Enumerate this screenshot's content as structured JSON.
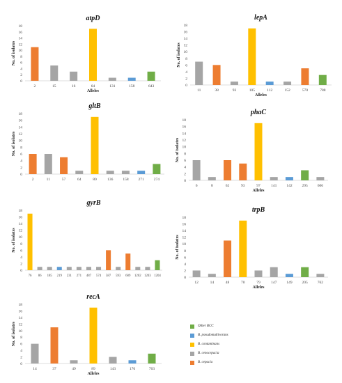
{
  "colors": {
    "b_cepacia": "#ED7D31",
    "b_cenocepacia": "#A5A5A5",
    "b_contaminans": "#FFC000",
    "b_pseudomultivorans": "#5B9BD5",
    "other_bcc": "#70AD47"
  },
  "legend": [
    {
      "label": "Other BCC",
      "color_key": "other_bcc"
    },
    {
      "label": "B. pseudomultivorans",
      "color_key": "b_pseudomultivorans"
    },
    {
      "label": "B. contaminans",
      "color_key": "b_contaminans"
    },
    {
      "label": "B. cenocepacia",
      "color_key": "b_cenocepacia"
    },
    {
      "label": "B. cepacia",
      "color_key": "b_cepacia"
    }
  ],
  "chart_data": [
    {
      "type": "bar",
      "title": "atpD",
      "xlabel": "Alleles",
      "ylabel": "No. of isolates",
      "ylim": [
        0,
        18
      ],
      "yticks": [
        0,
        2,
        4,
        6,
        8,
        10,
        12,
        14,
        16,
        18
      ],
      "grid": false,
      "categories": [
        "2",
        "15",
        "16",
        "64",
        "131",
        "158",
        "643"
      ],
      "values": [
        11,
        5,
        3,
        17,
        1,
        1,
        3
      ],
      "species": [
        "b_cepacia",
        "b_cenocepacia",
        "b_cenocepacia",
        "b_contaminans",
        "b_cenocepacia",
        "b_pseudomultivorans",
        "other_bcc"
      ]
    },
    {
      "type": "bar",
      "title": "lepA",
      "xlabel": "Alleles",
      "ylabel": "No. of isolates",
      "ylim": [
        0,
        18
      ],
      "yticks": [
        0,
        2,
        4,
        6,
        8,
        10,
        12,
        14,
        16,
        18
      ],
      "grid": false,
      "categories": [
        "11",
        "38",
        "93",
        "105",
        "112",
        "152",
        "570",
        "788"
      ],
      "values": [
        7,
        6,
        1,
        17,
        1,
        1,
        5,
        3
      ],
      "species": [
        "b_cenocepacia",
        "b_cepacia",
        "b_cenocepacia",
        "b_contaminans",
        "b_pseudomultivorans",
        "b_cenocepacia",
        "b_cepacia",
        "other_bcc"
      ]
    },
    {
      "type": "bar",
      "title": "gltB",
      "xlabel": "",
      "ylabel": "No. of isolates",
      "ylim": [
        0,
        18
      ],
      "yticks": [
        0,
        2,
        4,
        6,
        8,
        10,
        12,
        14,
        16,
        18
      ],
      "grid": false,
      "categories": [
        "2",
        "11",
        "57",
        "64",
        "80",
        "136",
        "158",
        "271",
        "274"
      ],
      "values": [
        6,
        6,
        5,
        1,
        17,
        1,
        1,
        1,
        3
      ],
      "species": [
        "b_cepacia",
        "b_cenocepacia",
        "b_cepacia",
        "b_cenocepacia",
        "b_contaminans",
        "b_cenocepacia",
        "b_cenocepacia",
        "b_pseudomultivorans",
        "other_bcc"
      ]
    },
    {
      "type": "bar",
      "title": "phaC",
      "xlabel": "Alleles",
      "ylabel": "No. of isolates",
      "ylim": [
        0,
        18
      ],
      "yticks": [
        0,
        2,
        4,
        6,
        8,
        10,
        12,
        14,
        16,
        18
      ],
      "grid": false,
      "categories": [
        "6",
        "8",
        "62",
        "93",
        "97",
        "141",
        "142",
        "295",
        "606"
      ],
      "values": [
        6,
        1,
        6,
        5,
        17,
        1,
        1,
        3,
        1
      ],
      "species": [
        "b_cenocepacia",
        "b_cenocepacia",
        "b_cepacia",
        "b_cepacia",
        "b_contaminans",
        "b_cenocepacia",
        "b_pseudomultivorans",
        "other_bcc",
        "b_cenocepacia"
      ]
    },
    {
      "type": "bar",
      "title": "gyrB",
      "xlabel": "",
      "ylabel": "No. of isolates",
      "ylim": [
        0,
        18
      ],
      "yticks": [
        0,
        2,
        4,
        6,
        8,
        10,
        12,
        14,
        16,
        18
      ],
      "grid": false,
      "categories": [
        "76",
        "86",
        "185",
        "219",
        "231",
        "271",
        "487",
        "574",
        "587",
        "593",
        "689",
        "1202",
        "1203",
        "1204"
      ],
      "values": [
        17,
        1,
        1,
        1,
        1,
        1,
        1,
        1,
        6,
        1,
        5,
        1,
        1,
        3
      ],
      "species": [
        "b_contaminans",
        "b_cenocepacia",
        "b_cenocepacia",
        "b_pseudomultivorans",
        "b_cenocepacia",
        "b_cenocepacia",
        "b_cenocepacia",
        "b_cenocepacia",
        "b_cepacia",
        "b_cenocepacia",
        "b_cepacia",
        "b_cenocepacia",
        "b_cenocepacia",
        "other_bcc"
      ]
    },
    {
      "type": "bar",
      "title": "trpB",
      "xlabel": "Alleles",
      "ylabel": "No. of isolates",
      "ylim": [
        0,
        18
      ],
      "yticks": [
        0,
        2,
        4,
        6,
        8,
        10,
        12,
        14,
        16,
        18
      ],
      "grid": false,
      "categories": [
        "12",
        "14",
        "48",
        "70",
        "79",
        "147",
        "149",
        "205",
        "762"
      ],
      "values": [
        2,
        1,
        11,
        17,
        2,
        3,
        1,
        3,
        1
      ],
      "species": [
        "b_cenocepacia",
        "b_cenocepacia",
        "b_cepacia",
        "b_contaminans",
        "b_cenocepacia",
        "b_cenocepacia",
        "b_pseudomultivorans",
        "other_bcc",
        "b_cenocepacia"
      ]
    },
    {
      "type": "bar",
      "title": "recA",
      "xlabel": "Alleles",
      "ylabel": "No. of isolates",
      "ylim": [
        0,
        18
      ],
      "yticks": [
        0,
        2,
        4,
        6,
        8,
        10,
        12,
        14,
        16,
        18
      ],
      "grid": false,
      "categories": [
        "14",
        "37",
        "49",
        "89",
        "143",
        "176",
        "703"
      ],
      "values": [
        6,
        11,
        1,
        17,
        2,
        1,
        3
      ],
      "species": [
        "b_cenocepacia",
        "b_cepacia",
        "b_cenocepacia",
        "b_contaminans",
        "b_cenocepacia",
        "b_pseudomultivorans",
        "other_bcc"
      ]
    }
  ]
}
